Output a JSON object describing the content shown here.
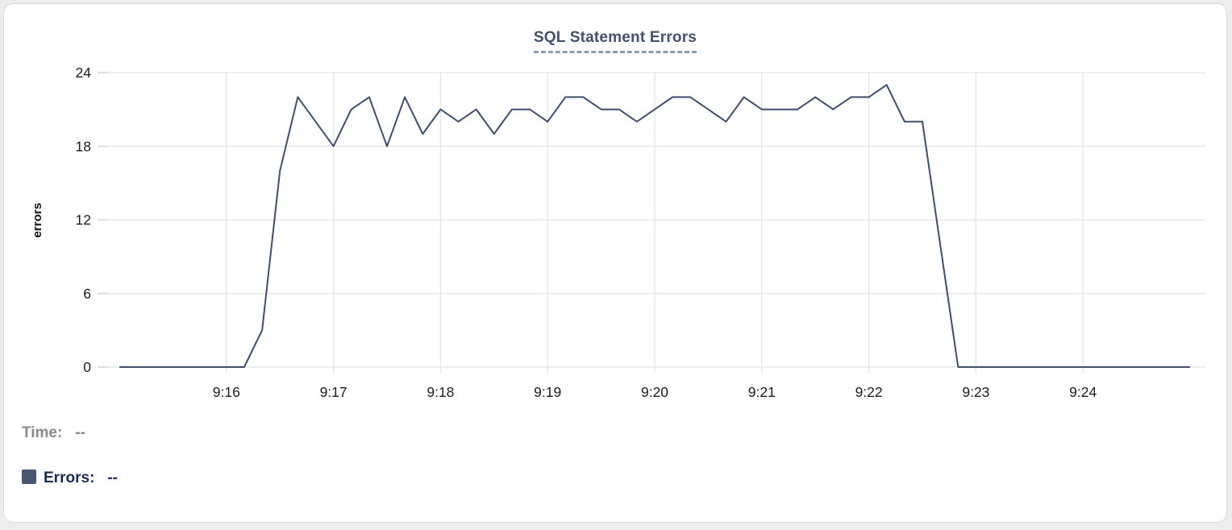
{
  "chart_data": {
    "type": "line",
    "title": "SQL Statement Errors",
    "xlabel": "",
    "ylabel": "errors",
    "ylim": [
      0,
      24
    ],
    "yticks": [
      0,
      6,
      12,
      18,
      24
    ],
    "xticks": [
      "9:16",
      "9:17",
      "9:18",
      "9:19",
      "9:20",
      "9:21",
      "9:22",
      "9:23",
      "9:24"
    ],
    "grid": true,
    "legend_position": "none",
    "x_start": "9:15:00",
    "x_interval_seconds": 10,
    "series": [
      {
        "name": "Errors",
        "color": "#3e4e6c",
        "values": [
          0,
          0,
          0,
          0,
          0,
          0,
          0,
          0,
          3,
          16,
          22,
          20,
          18,
          21,
          22,
          18,
          22,
          19,
          21,
          20,
          21,
          19,
          21,
          21,
          20,
          22,
          22,
          21,
          21,
          20,
          21,
          22,
          22,
          21,
          20,
          22,
          21,
          21,
          21,
          22,
          21,
          22,
          22,
          23,
          20,
          20,
          10,
          0,
          0,
          0,
          0,
          0,
          0,
          0,
          0,
          0,
          0,
          0,
          0,
          0,
          0
        ]
      }
    ]
  },
  "readout": {
    "time_label": "Time:",
    "time_value": "--",
    "errors_label": "Errors:",
    "errors_value": "--"
  },
  "colors": {
    "line": "#3e4e6c",
    "title": "#44516e",
    "title_underline": "#8e9cb5",
    "legend_swatch": "#475772",
    "errors_text": "#1c2b52",
    "time_text": "#8a8a8f",
    "grid": "#e8e8e8",
    "tick_text": "#1b1b1b",
    "card_border": "#d9d9d9",
    "page_bg": "#ededed"
  }
}
